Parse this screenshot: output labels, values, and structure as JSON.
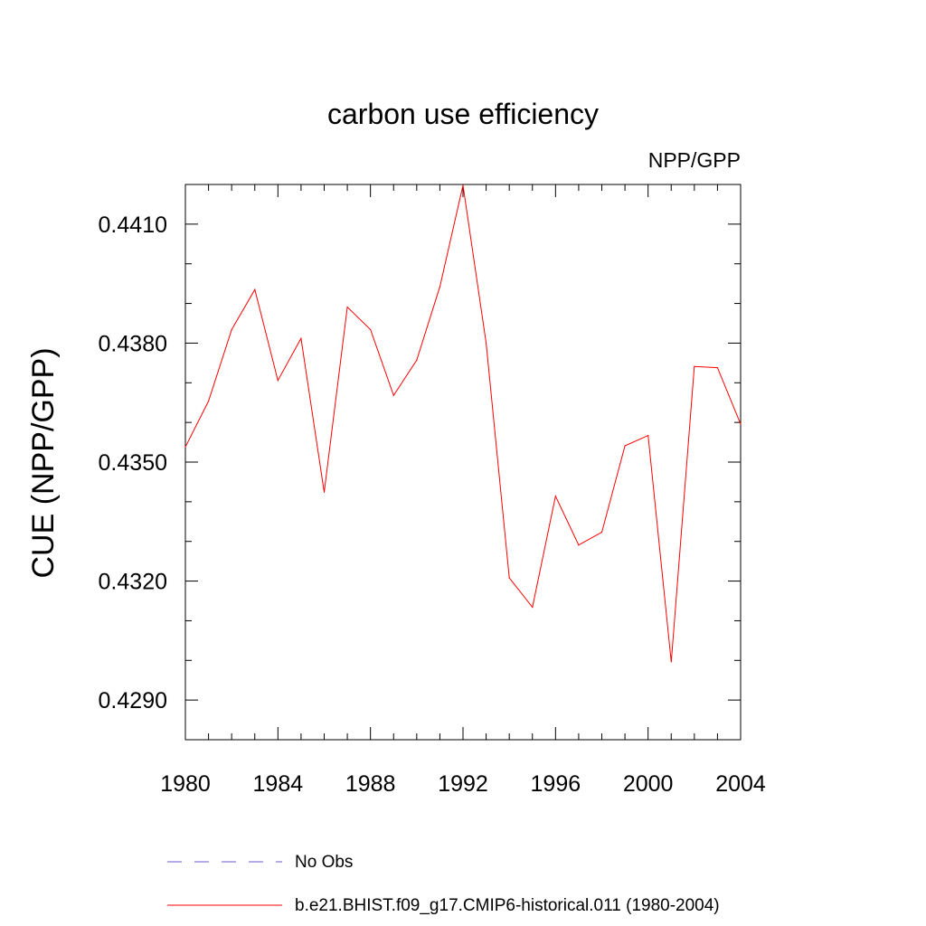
{
  "chart_data": {
    "type": "line",
    "title": "carbon use efficiency",
    "subtitle": "NPP/GPP",
    "xlabel": "",
    "ylabel": "CUE  (NPP/GPP)",
    "xlim": [
      1980,
      2004
    ],
    "ylim": [
      0.428,
      0.442
    ],
    "x_major_ticks": [
      1980,
      1984,
      1988,
      1992,
      1996,
      2000,
      2004
    ],
    "x_minor_ticks": [
      1981,
      1982,
      1983,
      1985,
      1986,
      1987,
      1989,
      1990,
      1991,
      1993,
      1994,
      1995,
      1997,
      1998,
      1999,
      2001,
      2002,
      2003
    ],
    "y_major_ticks": [
      0.429,
      0.432,
      0.435,
      0.438,
      0.441
    ],
    "y_major_tick_labels": [
      "0.4290",
      "0.4320",
      "0.4350",
      "0.4380",
      "0.4410"
    ],
    "y_minor_ticks": [
      0.428,
      0.43,
      0.431,
      0.433,
      0.434,
      0.436,
      0.437,
      0.439,
      0.44,
      0.442
    ],
    "grid": false,
    "legend_position": "bottom",
    "series": [
      {
        "name": "b.e21.BHIST.f09_g17.CMIP6-historical.011 (1980-2004)",
        "color": "#ff0000",
        "style": "solid",
        "x": [
          1980,
          1981,
          1982,
          1983,
          1984,
          1985,
          1986,
          1987,
          1988,
          1989,
          1990,
          1991,
          1992,
          1993,
          1994,
          1995,
          1996,
          1997,
          1998,
          1999,
          2000,
          2001,
          2002,
          2003,
          2004
        ],
        "values": [
          0.43538,
          0.43654,
          0.43834,
          0.43935,
          0.43706,
          0.43812,
          0.43424,
          0.43891,
          0.43834,
          0.43668,
          0.43757,
          0.43942,
          0.44198,
          0.438,
          0.43208,
          0.43134,
          0.43414,
          0.43291,
          0.43323,
          0.43541,
          0.43567,
          0.42996,
          0.43741,
          0.43738,
          0.43596
        ]
      }
    ],
    "legend": [
      {
        "label": "No Obs",
        "color": "#6a5acd",
        "style": "dashed"
      },
      {
        "label": "b.e21.BHIST.f09_g17.CMIP6-historical.011 (1980-2004)",
        "color": "#ff0000",
        "style": "solid"
      }
    ]
  }
}
